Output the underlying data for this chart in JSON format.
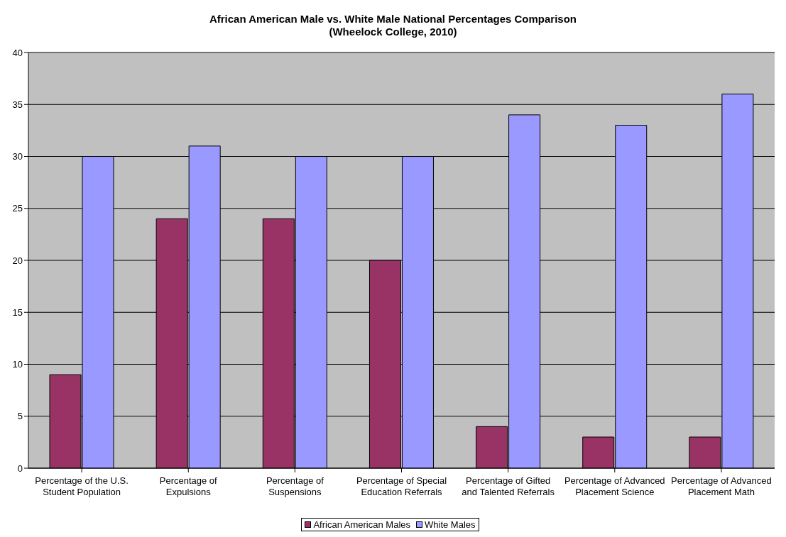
{
  "chart_data": {
    "type": "bar",
    "title": "African American Male vs. White Male National Percentages Comparison",
    "subtitle": "(Wheelock College, 2010)",
    "categories": [
      "Percentage of the U.S. Student Population",
      "Percentage of Expulsions",
      "Percentage of Suspensions",
      "Percentage of Special Education Referrals",
      "Percentage of Gifted and Talented Referrals",
      "Percentage of Advanced Placement Science",
      "Percentage of Advanced Placement Math"
    ],
    "series": [
      {
        "name": "African American Males",
        "color": "#993366",
        "values": [
          9,
          24,
          24,
          20,
          4,
          3,
          3
        ]
      },
      {
        "name": "White Males",
        "color": "#9999ff",
        "values": [
          30,
          31,
          30,
          30,
          34,
          33,
          36
        ]
      }
    ],
    "ylim": [
      0,
      40
    ],
    "yticks": [
      0,
      5,
      10,
      15,
      20,
      25,
      30,
      35,
      40
    ],
    "grid": "y",
    "legend": "bottom"
  }
}
